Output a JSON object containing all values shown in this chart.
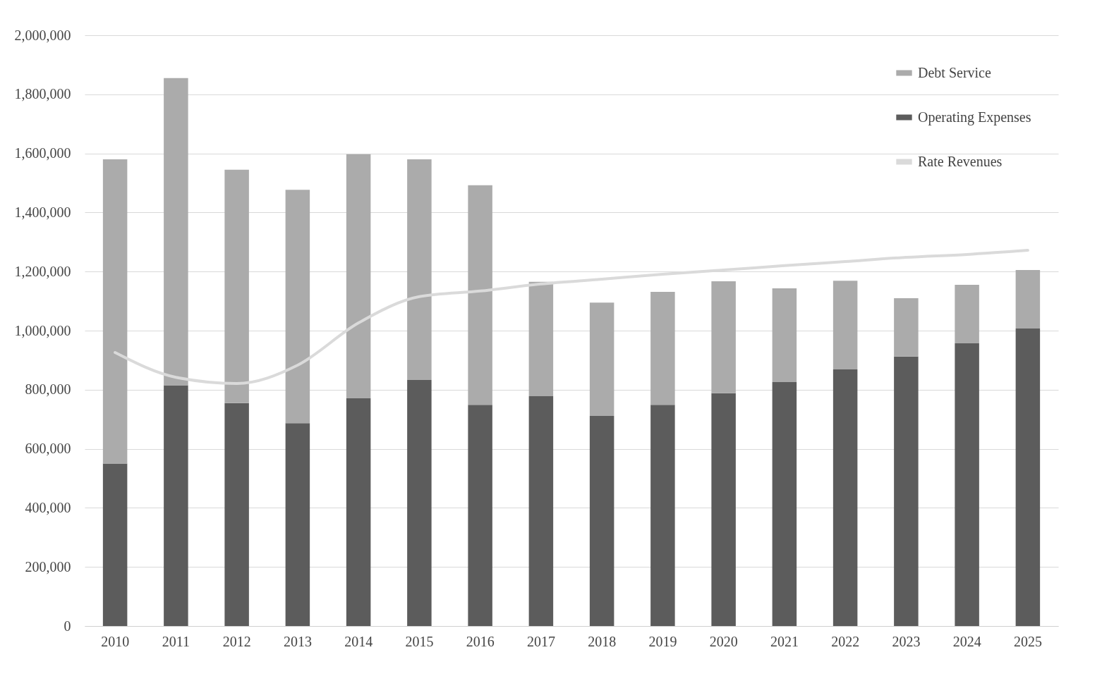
{
  "chart_data": {
    "type": "bar",
    "stacked": true,
    "categories": [
      "2010",
      "2011",
      "2012",
      "2013",
      "2014",
      "2015",
      "2016",
      "2017",
      "2018",
      "2019",
      "2020",
      "2021",
      "2022",
      "2023",
      "2024",
      "2025"
    ],
    "series": [
      {
        "name": "Operating Expenses",
        "color": "#5c5c5c",
        "values": [
          550000,
          815000,
          755000,
          687000,
          771000,
          833000,
          749000,
          778000,
          711000,
          749000,
          788000,
          826000,
          869000,
          912000,
          957000,
          1007000
        ]
      },
      {
        "name": "Debt Service",
        "color": "#ababab",
        "values": [
          1030000,
          1040000,
          790000,
          790000,
          826000,
          747000,
          743000,
          387000,
          384000,
          382000,
          379000,
          317000,
          300000,
          198000,
          198000,
          198000
        ]
      },
      {
        "name": "Rate Revenues",
        "type": "line",
        "color": "#dadada",
        "values": [
          926000,
          842000,
          821000,
          883000,
          1026000,
          1115000,
          1134000,
          1158000,
          1174000,
          1191000,
          1205000,
          1220000,
          1234000,
          1248000,
          1258000,
          1272000
        ]
      }
    ],
    "ylim": [
      0,
      2000000
    ],
    "yticks": [
      0,
      {
        "value": 200000,
        "label": "200,000"
      },
      {
        "value": 400000,
        "label": "400,000"
      },
      {
        "value": 600000,
        "label": "600,000"
      },
      {
        "value": 800000,
        "label": "800,000"
      },
      {
        "value": 1000000,
        "label": "1,000,000"
      },
      {
        "value": 1200000,
        "label": "1,200,000"
      },
      {
        "value": 1400000,
        "label": "1,400,000"
      },
      {
        "value": 1600000,
        "label": "1,600,000"
      },
      {
        "value": 1800000,
        "label": "1,800,000"
      },
      {
        "value": 2000000,
        "label": "2,000,000"
      }
    ],
    "grid": "y",
    "legend": "top right"
  }
}
